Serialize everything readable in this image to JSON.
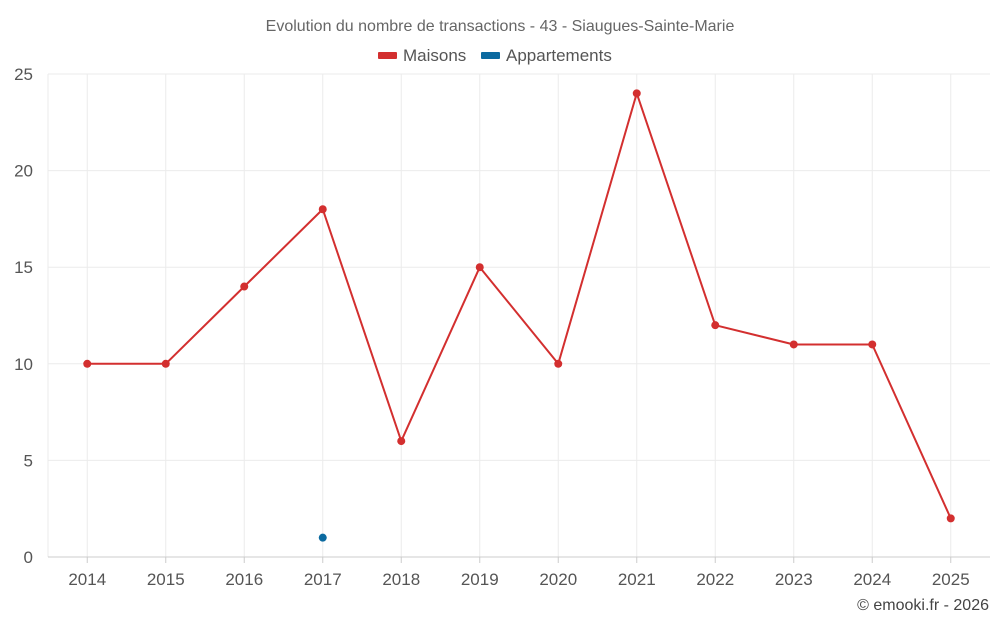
{
  "chart_data": {
    "type": "line",
    "title": "Evolution du nombre de transactions - 43 - Siaugues-Sainte-Marie",
    "categories": [
      "2014",
      "2015",
      "2016",
      "2017",
      "2018",
      "2019",
      "2020",
      "2021",
      "2022",
      "2023",
      "2024",
      "2025"
    ],
    "series": [
      {
        "name": "Maisons",
        "color": "#d32f2f",
        "values": [
          10,
          10,
          14,
          18,
          6,
          15,
          10,
          24,
          12,
          11,
          11,
          2
        ]
      },
      {
        "name": "Appartements",
        "color": "#0b6aa0",
        "values": [
          null,
          null,
          null,
          1,
          null,
          null,
          null,
          null,
          null,
          null,
          null,
          null
        ]
      }
    ],
    "yticks": [
      0,
      5,
      10,
      15,
      20,
      25
    ],
    "ylim": [
      0,
      25
    ],
    "xlabel": "",
    "ylabel": "",
    "legend_position": "top-center",
    "grid": true
  },
  "credit": "© emooki.fr - 2026"
}
